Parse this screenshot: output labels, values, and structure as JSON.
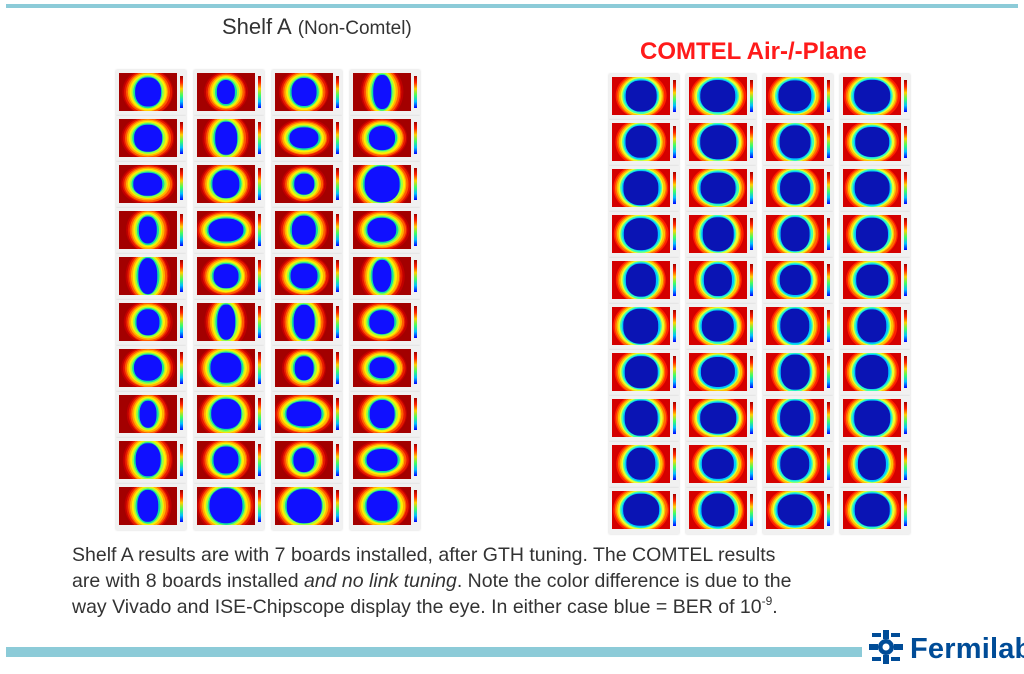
{
  "slide": {
    "left_panel": {
      "title": "Shelf A",
      "subtitle": "(Non-Comtel)",
      "grid": {
        "columns": 4,
        "rows": 10,
        "plot_style": "ISE-Chipscope eye scan",
        "outer_color": "#a30000"
      }
    },
    "right_panel": {
      "title": "COMTEL Air-/-Plane",
      "title_color": "#ff1a1a",
      "grid": {
        "columns": 4,
        "rows": 10,
        "plot_style": "Vivado eye scan",
        "outer_color": "#d40000"
      }
    },
    "caption": {
      "line1": "Shelf A results are with 7 boards installed, after GTH tuning. The COMTEL results",
      "line2_pre": "are with 8 boards installed ",
      "line2_italic": "and no link tuning",
      "line2_post": ".  Note the color difference is due to the",
      "line3_pre": "way Vivado and ISE-Chipscope display the eye.  In either case blue = BER of 10",
      "line3_sup": "-9",
      "line3_post": "."
    },
    "footer": {
      "logo_text": "Fermilab",
      "logo_icon": "fermilab-logo-icon",
      "brand_color": "#004c97",
      "rule_color": "#8ccbd8"
    }
  }
}
